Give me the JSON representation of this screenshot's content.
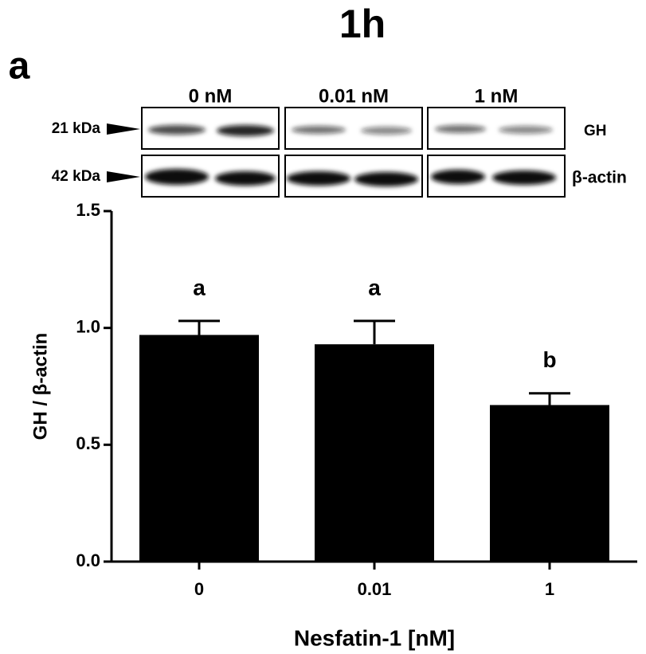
{
  "chart_data": {
    "type": "bar",
    "title": "1h",
    "panel": "a",
    "blot": {
      "lanes": [
        "0 nM",
        "0.01 nM",
        "1 nM"
      ],
      "markers": [
        "21 kDa",
        "42 kDa"
      ],
      "proteins": [
        "GH",
        "β-actin"
      ]
    },
    "categories": [
      "0",
      "0.01",
      "1"
    ],
    "values": [
      0.97,
      0.93,
      0.67
    ],
    "errors": [
      0.06,
      0.1,
      0.05
    ],
    "annotations": [
      "a",
      "a",
      "b"
    ],
    "color": "#000000",
    "xlabel": "Nesfatin-1 [nM]",
    "ylabel": "GH / β-actin",
    "ylim": [
      0,
      1.5
    ],
    "yticks": [
      {
        "value": 0,
        "label": "0.0"
      },
      {
        "value": 0.5,
        "label": "0.5"
      },
      {
        "value": 1,
        "label": "1.0"
      },
      {
        "value": 1.5,
        "label": "1.5"
      }
    ]
  }
}
